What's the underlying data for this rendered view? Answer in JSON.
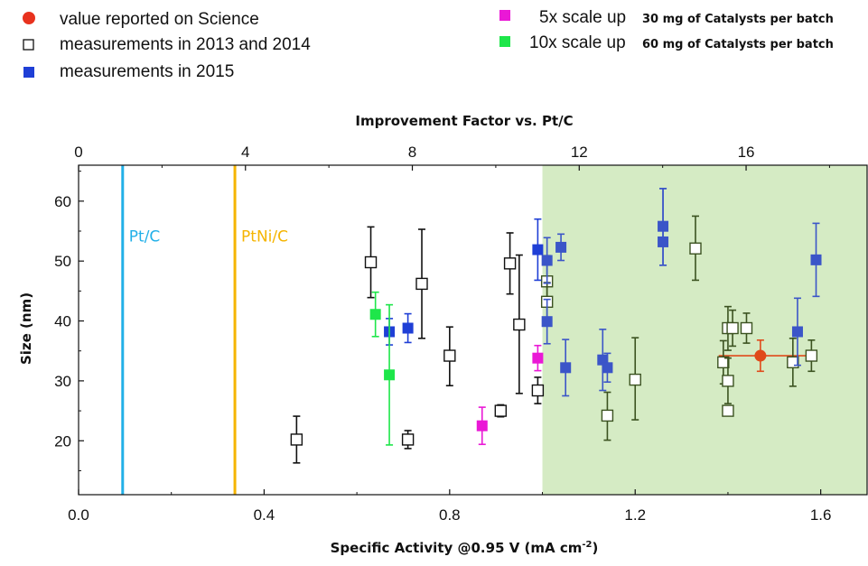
{
  "legend": {
    "science": {
      "label": "value reported on Science",
      "color": "#e8321e"
    },
    "m2013": {
      "label": "measurements in 2013 and 2014"
    },
    "m2015": {
      "label": "measurements in 2015",
      "color": "#1f3fd6"
    },
    "scale5": {
      "label": "5x scale up",
      "note": "30 mg of Catalysts per batch",
      "color": "#ea18d6"
    },
    "scale10": {
      "label": "10x scale up",
      "note": "60 mg of Catalysts per batch",
      "color": "#1ee64a"
    }
  },
  "chart_data": {
    "type": "scatter",
    "xlabel_main": "Specific Activity @0.95 V (mA cm",
    "xlabel_sup": "-2",
    "xlabel_end": ")",
    "ylabel": "Size (nm)",
    "top_xlabel": "Improvement Factor vs. Pt/C",
    "xlim": [
      0.0,
      1.7
    ],
    "ylim": [
      11,
      66
    ],
    "xticks": [
      "0.0",
      "0.4",
      "0.8",
      "1.2",
      "1.6"
    ],
    "yticks": [
      "20",
      "30",
      "40",
      "50",
      "60"
    ],
    "top_xlim": [
      0,
      18.9
    ],
    "top_xticks": [
      "0",
      "4",
      "8",
      "12",
      "16"
    ],
    "shaded_region": {
      "x_from": 1.0,
      "x_to": 1.7,
      "color": "#d5ebc4"
    },
    "reference_lines": [
      {
        "label": "Pt/C",
        "x": 0.095,
        "color": "#22b0e8"
      },
      {
        "label": "PtNi/C",
        "x": 0.337,
        "color": "#f5b400"
      }
    ],
    "series": [
      {
        "name": "value reported on Science",
        "marker": "circle",
        "color": "#e04a1a",
        "points": [
          {
            "x": 1.47,
            "y": 34.2,
            "yerr": [
              31.6,
              36.8
            ],
            "xerr": [
              1.38,
              1.57
            ]
          }
        ]
      },
      {
        "name": "measurements in 2013 and 2014",
        "marker": "open-square",
        "color": "#111111",
        "color_in_shade": "#3b5220",
        "points": [
          {
            "x": 0.47,
            "y": 20.2,
            "yerr": [
              16.3,
              24.1
            ]
          },
          {
            "x": 0.63,
            "y": 49.8,
            "yerr": [
              43.9,
              55.7
            ]
          },
          {
            "x": 0.71,
            "y": 20.2,
            "yerr": [
              18.7,
              21.7
            ]
          },
          {
            "x": 0.74,
            "y": 46.2,
            "yerr": [
              37.1,
              55.3
            ]
          },
          {
            "x": 0.8,
            "y": 34.2,
            "yerr": [
              29.2,
              39.0
            ]
          },
          {
            "x": 0.91,
            "y": 25.0,
            "yerr": [
              24.0,
              26.0
            ]
          },
          {
            "x": 0.93,
            "y": 49.6,
            "yerr": [
              44.5,
              54.7
            ]
          },
          {
            "x": 0.95,
            "y": 39.4,
            "yerr": [
              27.9,
              51.0
            ]
          },
          {
            "x": 0.99,
            "y": 28.4,
            "yerr": [
              26.2,
              30.6
            ]
          },
          {
            "x": 1.01,
            "y": 46.6,
            "yerr": [
              42.4,
              50.9
            ]
          },
          {
            "x": 1.01,
            "y": 43.2,
            "yerr": [
              40.0,
              46.4
            ]
          },
          {
            "x": 1.14,
            "y": 24.2,
            "yerr": [
              20.1,
              28.1
            ]
          },
          {
            "x": 1.2,
            "y": 30.2,
            "yerr": [
              23.5,
              37.2
            ]
          },
          {
            "x": 1.33,
            "y": 52.1,
            "yerr": [
              46.8,
              57.5
            ]
          },
          {
            "x": 1.39,
            "y": 33.1,
            "yerr": [
              29.5,
              36.7
            ]
          },
          {
            "x": 1.4,
            "y": 38.8,
            "yerr": [
              35.1,
              42.4
            ]
          },
          {
            "x": 1.4,
            "y": 30.0,
            "yerr": [
              26.2,
              33.8
            ]
          },
          {
            "x": 1.4,
            "y": 25.0,
            "yerr": [
              24.2,
              25.8
            ]
          },
          {
            "x": 1.41,
            "y": 38.8,
            "yerr": [
              35.8,
              41.8
            ]
          },
          {
            "x": 1.44,
            "y": 38.8,
            "yerr": [
              36.3,
              41.3
            ]
          },
          {
            "x": 1.54,
            "y": 33.1,
            "yerr": [
              29.1,
              37.1
            ]
          },
          {
            "x": 1.58,
            "y": 34.2,
            "yerr": [
              31.6,
              36.8
            ]
          }
        ]
      },
      {
        "name": "measurements in 2015",
        "marker": "filled-square",
        "color": "#1f3fd6",
        "color_in_shade": "#3b55c8",
        "points": [
          {
            "x": 0.67,
            "y": 38.2,
            "yerr": [
              36.0,
              40.4
            ]
          },
          {
            "x": 0.71,
            "y": 38.8,
            "yerr": [
              36.4,
              41.2
            ]
          },
          {
            "x": 0.99,
            "y": 51.9,
            "yerr": [
              46.8,
              57.0
            ]
          },
          {
            "x": 1.01,
            "y": 50.1,
            "yerr": [
              46.3,
              53.9
            ]
          },
          {
            "x": 1.01,
            "y": 39.9,
            "yerr": [
              36.2,
              43.6
            ]
          },
          {
            "x": 1.04,
            "y": 52.3,
            "yerr": [
              50.1,
              54.5
            ]
          },
          {
            "x": 1.05,
            "y": 32.2,
            "yerr": [
              27.5,
              36.9
            ]
          },
          {
            "x": 1.13,
            "y": 33.5,
            "yerr": [
              28.4,
              38.6
            ]
          },
          {
            "x": 1.14,
            "y": 32.2,
            "yerr": [
              29.8,
              34.6
            ]
          },
          {
            "x": 1.26,
            "y": 55.8,
            "yerr": [
              49.3,
              62.1
            ]
          },
          {
            "x": 1.26,
            "y": 53.2,
            "yerr": [
              49.3,
              62.1
            ]
          },
          {
            "x": 1.55,
            "y": 38.2,
            "yerr": [
              32.6,
              43.8
            ]
          },
          {
            "x": 1.59,
            "y": 50.2,
            "yerr": [
              44.1,
              56.3
            ]
          }
        ]
      },
      {
        "name": "5x scale up",
        "marker": "filled-square",
        "color": "#ea18d6",
        "points": [
          {
            "x": 0.87,
            "y": 22.5,
            "yerr": [
              19.4,
              25.6
            ]
          },
          {
            "x": 0.99,
            "y": 33.8,
            "yerr": [
              31.7,
              35.9
            ]
          }
        ]
      },
      {
        "name": "10x scale up",
        "marker": "filled-square",
        "color": "#1ee64a",
        "points": [
          {
            "x": 0.64,
            "y": 41.1,
            "yerr": [
              37.4,
              44.8
            ]
          },
          {
            "x": 0.67,
            "y": 31.0,
            "yerr": [
              19.3,
              42.7
            ]
          }
        ]
      }
    ]
  }
}
